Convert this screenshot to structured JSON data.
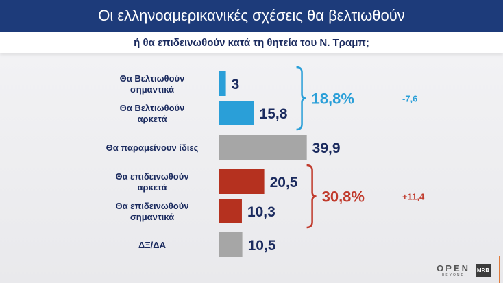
{
  "header": {
    "title": "Οι ελληνοαμερικανικές σχέσεις θα βελτιωθούν",
    "subtitle": "ή θα επιδεινωθούν κατά τη θητεία του Ν. Τραμπ;"
  },
  "chart_data": {
    "type": "bar",
    "orientation": "horizontal",
    "categories": [
      [
        "Θα Βελτιωθούν",
        "σημαντικά"
      ],
      [
        "Θα Βελτιωθούν",
        "αρκετά"
      ],
      [
        "Θα παραμείνουν ίδιες"
      ],
      [
        "Θα επιδεινωθούν",
        "αρκετά"
      ],
      [
        "Θα επιδεινωθούν",
        "σημαντικά"
      ],
      [
        "ΔΞ/ΔΑ"
      ]
    ],
    "values": [
      3,
      15.8,
      39.9,
      20.5,
      10.3,
      10.5
    ],
    "value_labels": [
      "3",
      "15,8",
      "39,9",
      "20,5",
      "10,3",
      "10,5"
    ],
    "colors": [
      "#2a9fd8",
      "#2a9fd8",
      "#a6a6a6",
      "#b5311f",
      "#b5311f",
      "#a6a6a6"
    ],
    "groups": [
      {
        "label": "18,8%",
        "change": "-7,6",
        "bars": [
          0,
          1
        ],
        "color": "#2a9fd8"
      },
      {
        "label": "30,8%",
        "change": "+11,4",
        "bars": [
          3,
          4
        ],
        "color": "#c0392b"
      }
    ]
  },
  "logo": {
    "open": "OPEN",
    "open_sub": "BEYOND",
    "mrb": "MRB"
  }
}
